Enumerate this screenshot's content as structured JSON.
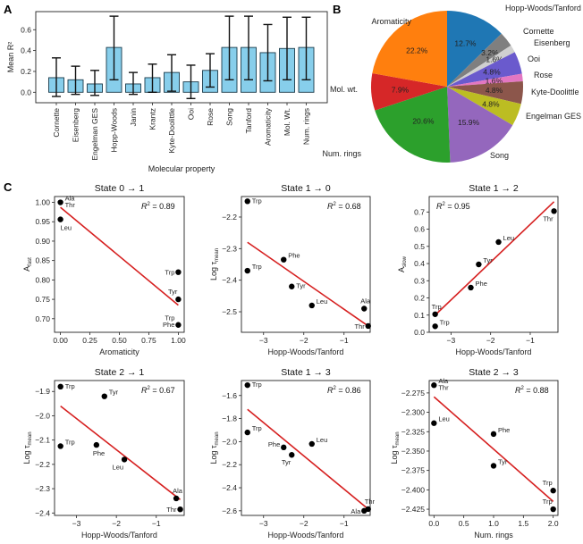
{
  "panel_letters": {
    "a": "A",
    "b": "B",
    "c": "C"
  },
  "chart_data": [
    {
      "id": "A",
      "type": "bar",
      "title": "",
      "xlabel": "Molecular property",
      "ylabel": "Mean R²",
      "ylim": [
        -0.1,
        0.78
      ],
      "yticks": [
        0.0,
        0.2,
        0.4,
        0.6
      ],
      "ytick_labels": [
        "0.0",
        "0.2",
        "0.4",
        "0.6"
      ],
      "bar_color": "#87ceeb",
      "categories": [
        "Cornette",
        "Eisenberg",
        "Engelman GES",
        "Hopp-Woods",
        "Janin",
        "Krantz",
        "Kyte-Doolittle",
        "Ooi",
        "Rose",
        "Song",
        "Tanford",
        "Aromaticity",
        "Mol. Wt.",
        "Num. rings"
      ],
      "values": [
        0.14,
        0.12,
        0.08,
        0.43,
        0.08,
        0.14,
        0.19,
        0.1,
        0.21,
        0.43,
        0.43,
        0.38,
        0.42,
        0.43
      ],
      "error_low": [
        -0.04,
        -0.02,
        -0.03,
        0.12,
        -0.02,
        0.0,
        0.01,
        -0.06,
        0.05,
        0.12,
        0.12,
        0.11,
        0.12,
        0.12
      ],
      "error_high": [
        0.33,
        0.25,
        0.21,
        0.73,
        0.19,
        0.27,
        0.36,
        0.26,
        0.37,
        0.73,
        0.73,
        0.65,
        0.72,
        0.72
      ]
    },
    {
      "id": "B",
      "type": "pie",
      "title": "",
      "slices": [
        {
          "label": "Hopp-Woods/Tanford",
          "value": 12.7,
          "pct": "12.7%",
          "color": "#1f77b4"
        },
        {
          "label": "Cornette",
          "value": 3.2,
          "pct": "3.2%",
          "color": "#7f7f7f"
        },
        {
          "label": "Eisenberg",
          "value": 1.6,
          "pct": "1.6%",
          "color": "#d0d0d0"
        },
        {
          "label": "Ooi",
          "value": 4.8,
          "pct": "4.8%",
          "color": "#6a5acd"
        },
        {
          "label": "Rose",
          "value": 1.6,
          "pct": "1.6%",
          "color": "#e377c2"
        },
        {
          "label": "Kyte-Doolittle",
          "value": 4.8,
          "pct": "4.8%",
          "color": "#8c564b"
        },
        {
          "label": "Engelman GES",
          "value": 4.8,
          "pct": "4.8%",
          "color": "#bcbd22"
        },
        {
          "label": "Song",
          "value": 15.9,
          "pct": "15.9%",
          "color": "#9467bd"
        },
        {
          "label": "Num. rings",
          "value": 20.6,
          "pct": "20.6%",
          "color": "#2ca02c"
        },
        {
          "label": "Mol. wt.",
          "value": 7.9,
          "pct": "7.9%",
          "color": "#d62728"
        },
        {
          "label": "Aromaticity",
          "value": 22.2,
          "pct": "22.2%",
          "color": "#ff7f0e"
        }
      ]
    },
    {
      "id": "C1",
      "type": "scatter",
      "title": "State 0 → 1",
      "xlabel": "Aromaticity",
      "ylabel": "A",
      "ylabel_sub": "fast",
      "r2": "0.89",
      "r2_position": "top-right",
      "xlim": [
        -0.05,
        1.05
      ],
      "ylim": [
        0.665,
        1.015
      ],
      "xticks": [
        0.0,
        0.25,
        0.5,
        0.75,
        1.0
      ],
      "xtick_labels": [
        "0.00",
        "0.25",
        "0.50",
        "0.75",
        "1.00"
      ],
      "yticks": [
        0.7,
        0.75,
        0.8,
        0.85,
        0.9,
        0.95,
        1.0
      ],
      "ytick_labels": [
        "0.70",
        "0.75",
        "0.80",
        "0.85",
        "0.90",
        "0.95",
        "1.00"
      ],
      "fit": {
        "x": [
          0.0,
          1.0
        ],
        "y": [
          0.987,
          0.735
        ]
      },
      "points": [
        {
          "x": 0.0,
          "y": 1.0,
          "label": "Ala\nThr",
          "pos": "right-up"
        },
        {
          "x": 0.0,
          "y": 0.956,
          "label": "Leu",
          "pos": "below-right"
        },
        {
          "x": 1.0,
          "y": 0.82,
          "label": "Trp",
          "pos": "left"
        },
        {
          "x": 1.0,
          "y": 0.75,
          "label": "Tyr",
          "pos": "above-left"
        },
        {
          "x": 1.0,
          "y": 0.684,
          "label": "Trp\nPhe",
          "pos": "left-stack"
        }
      ]
    },
    {
      "id": "C2",
      "type": "scatter",
      "title": "State 1 → 0",
      "xlabel": "Hopp-Woods/Tanford",
      "ylabel": "Log τ",
      "ylabel_sub": "mean",
      "r2": "0.68",
      "r2_position": "top-right",
      "xlim": [
        -3.55,
        -0.35
      ],
      "ylim": [
        -2.565,
        -2.135
      ],
      "xticks": [
        -3,
        -2,
        -1
      ],
      "xtick_labels": [
        "−3",
        "−2",
        "−1"
      ],
      "yticks": [
        -2.5,
        -2.4,
        -2.3,
        -2.2
      ],
      "ytick_labels": [
        "−2.5",
        "−2.4",
        "−2.3",
        "−2.2"
      ],
      "fit": {
        "x": [
          -3.4,
          -0.4
        ],
        "y": [
          -2.28,
          -2.545
        ]
      },
      "points": [
        {
          "x": -3.4,
          "y": -2.15,
          "label": "Trp",
          "pos": "right"
        },
        {
          "x": -2.5,
          "y": -2.335,
          "label": "Phe",
          "pos": "right-up"
        },
        {
          "x": -3.4,
          "y": -2.37,
          "label": "Trp",
          "pos": "right-up"
        },
        {
          "x": -2.3,
          "y": -2.42,
          "label": "Tyr",
          "pos": "right"
        },
        {
          "x": -1.8,
          "y": -2.48,
          "label": "Leu",
          "pos": "right-up"
        },
        {
          "x": -0.5,
          "y": -2.49,
          "label": "Ala",
          "pos": "above"
        },
        {
          "x": -0.4,
          "y": -2.545,
          "label": "Thr",
          "pos": "left"
        }
      ]
    },
    {
      "id": "C3",
      "type": "scatter",
      "title": "State 1 → 2",
      "xlabel": "Hopp-Woods/Tanford",
      "ylabel": "A",
      "ylabel_sub": "slow",
      "r2": "0.95",
      "r2_position": "top-left",
      "xlim": [
        -3.55,
        -0.3
      ],
      "ylim": [
        0.0,
        0.79
      ],
      "xticks": [
        -3,
        -2,
        -1
      ],
      "xtick_labels": [
        "−3",
        "−2",
        "−1"
      ],
      "yticks": [
        0.0,
        0.1,
        0.2,
        0.3,
        0.4,
        0.5,
        0.6,
        0.7
      ],
      "ytick_labels": [
        "0.0",
        "0.1",
        "0.2",
        "0.3",
        "0.4",
        "0.5",
        "0.6",
        "0.7"
      ],
      "fit": {
        "x": [
          -3.4,
          -0.4
        ],
        "y": [
          0.1,
          0.76
        ]
      },
      "points": [
        {
          "x": -0.4,
          "y": 0.705,
          "label": "Thr",
          "pos": "below-left"
        },
        {
          "x": -1.8,
          "y": 0.525,
          "label": "Leu",
          "pos": "right-up"
        },
        {
          "x": -2.3,
          "y": 0.395,
          "label": "Tyr",
          "pos": "right-up"
        },
        {
          "x": -2.5,
          "y": 0.26,
          "label": "Phe",
          "pos": "right-up"
        },
        {
          "x": -3.4,
          "y": 0.105,
          "label": "Trp",
          "pos": "above"
        },
        {
          "x": -3.4,
          "y": 0.035,
          "label": "Trp",
          "pos": "right-up"
        }
      ]
    },
    {
      "id": "C4",
      "type": "scatter",
      "title": "State 2 → 1",
      "xlabel": "Hopp-Woods/Tanford",
      "ylabel": "Log τ",
      "ylabel_sub": "mean",
      "r2": "0.67",
      "r2_position": "top-right",
      "xlim": [
        -3.55,
        -0.3
      ],
      "ylim": [
        -2.41,
        -1.855
      ],
      "xticks": [
        -3,
        -2,
        -1
      ],
      "xtick_labels": [
        "−3",
        "−2",
        "−1"
      ],
      "yticks": [
        -2.4,
        -2.3,
        -2.2,
        -2.1,
        -2.0,
        -1.9
      ],
      "ytick_labels": [
        "−2.4",
        "−2.3",
        "−2.2",
        "−2.1",
        "−2.0",
        "−1.9"
      ],
      "fit": {
        "x": [
          -3.4,
          -0.4
        ],
        "y": [
          -1.96,
          -2.345
        ]
      },
      "points": [
        {
          "x": -3.4,
          "y": -1.88,
          "label": "Trp",
          "pos": "right"
        },
        {
          "x": -2.3,
          "y": -1.92,
          "label": "Tyr",
          "pos": "right-up"
        },
        {
          "x": -3.4,
          "y": -2.125,
          "label": "Trp",
          "pos": "right-up"
        },
        {
          "x": -2.5,
          "y": -2.12,
          "label": "Phe",
          "pos": "below"
        },
        {
          "x": -1.8,
          "y": -2.18,
          "label": "Leu",
          "pos": "below-left"
        },
        {
          "x": -0.5,
          "y": -2.34,
          "label": "Ala",
          "pos": "above"
        },
        {
          "x": -0.4,
          "y": -2.385,
          "label": "Thr",
          "pos": "left"
        }
      ]
    },
    {
      "id": "C5",
      "type": "scatter",
      "title": "State 1 → 3",
      "xlabel": "Hopp-Woods/Tanford",
      "ylabel": "Log τ",
      "ylabel_sub": "mean",
      "r2": "0.86",
      "r2_position": "top-right",
      "xlim": [
        -3.55,
        -0.35
      ],
      "ylim": [
        -2.64,
        -1.47
      ],
      "xticks": [
        -3,
        -2,
        -1
      ],
      "xtick_labels": [
        "−3",
        "−2",
        "−1"
      ],
      "yticks": [
        -2.6,
        -2.4,
        -2.2,
        -2.0,
        -1.8,
        -1.6
      ],
      "ytick_labels": [
        "−2.6",
        "−2.4",
        "−2.2",
        "−2.0",
        "−1.8",
        "−1.6"
      ],
      "fit": {
        "x": [
          -3.4,
          -0.4
        ],
        "y": [
          -1.72,
          -2.585
        ]
      },
      "points": [
        {
          "x": -3.4,
          "y": -1.51,
          "label": "Trp",
          "pos": "right"
        },
        {
          "x": -3.4,
          "y": -1.92,
          "label": "Trp",
          "pos": "right-up"
        },
        {
          "x": -2.5,
          "y": -2.05,
          "label": "Phe",
          "pos": "left-up"
        },
        {
          "x": -2.3,
          "y": -2.115,
          "label": "Tyr",
          "pos": "below-left"
        },
        {
          "x": -1.8,
          "y": -2.02,
          "label": "Leu",
          "pos": "right-up"
        },
        {
          "x": -0.5,
          "y": -2.6,
          "label": "Ala",
          "pos": "left"
        },
        {
          "x": -0.4,
          "y": -2.585,
          "label": "Thr",
          "pos": "above"
        }
      ]
    },
    {
      "id": "C6",
      "type": "scatter",
      "title": "State 2 → 3",
      "xlabel": "Num. rings",
      "ylabel": "Log τ",
      "ylabel_sub": "mean",
      "r2": "0.88",
      "r2_position": "top-right",
      "xlim": [
        -0.08,
        2.08
      ],
      "ylim": [
        -2.433,
        -2.259
      ],
      "xticks": [
        0.0,
        0.5,
        1.0,
        1.5,
        2.0
      ],
      "xtick_labels": [
        "0.0",
        "0.5",
        "1.0",
        "1.5",
        "2.0"
      ],
      "yticks": [
        -2.425,
        -2.4,
        -2.375,
        -2.35,
        -2.325,
        -2.3,
        -2.275
      ],
      "ytick_labels": [
        "−2.425",
        "−2.400",
        "−2.375",
        "−2.350",
        "−2.325",
        "−2.300",
        "−2.275"
      ],
      "fit": {
        "x": [
          0.0,
          2.0
        ],
        "y": [
          -2.28,
          -2.415
        ]
      },
      "points": [
        {
          "x": 0.0,
          "y": -2.265,
          "label": "Ala\nThr",
          "pos": "right-up"
        },
        {
          "x": 0.0,
          "y": -2.314,
          "label": "Leu",
          "pos": "right-up"
        },
        {
          "x": 1.0,
          "y": -2.328,
          "label": "Phe",
          "pos": "right-up"
        },
        {
          "x": 1.0,
          "y": -2.369,
          "label": "Tyr",
          "pos": "right-up"
        },
        {
          "x": 2.0,
          "y": -2.401,
          "label": "Trp",
          "pos": "above-left"
        },
        {
          "x": 2.0,
          "y": -2.425,
          "label": "Trp",
          "pos": "above-left"
        }
      ]
    }
  ]
}
